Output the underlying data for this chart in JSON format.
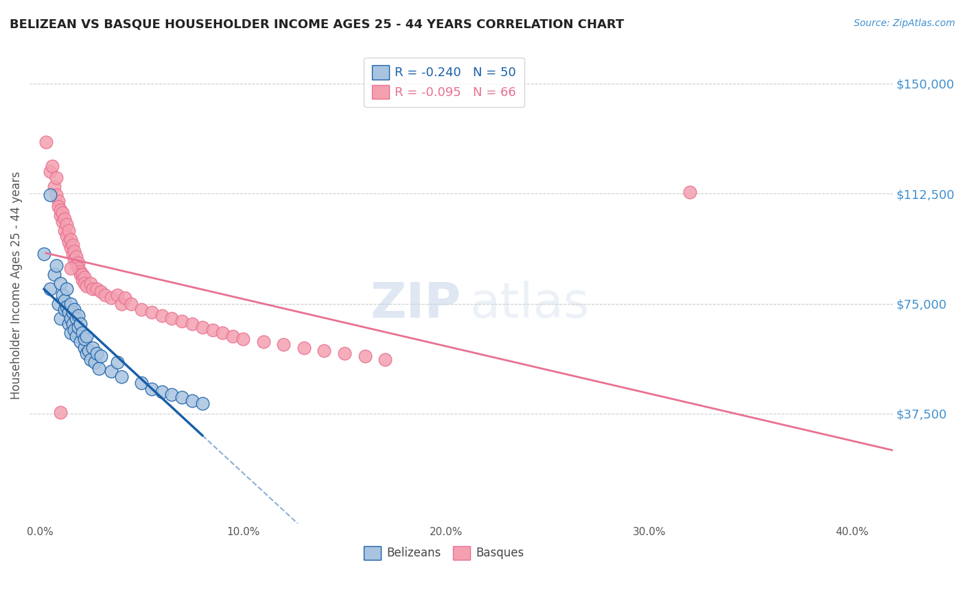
{
  "title": "BELIZEAN VS BASQUE HOUSEHOLDER INCOME AGES 25 - 44 YEARS CORRELATION CHART",
  "source": "Source: ZipAtlas.com",
  "ylabel": "Householder Income Ages 25 - 44 years",
  "xlabel_ticks": [
    "0.0%",
    "10.0%",
    "20.0%",
    "30.0%",
    "40.0%"
  ],
  "xlabel_vals": [
    0.0,
    0.1,
    0.2,
    0.3,
    0.4
  ],
  "ytick_labels": [
    "$37,500",
    "$75,000",
    "$112,500",
    "$150,000"
  ],
  "ytick_vals": [
    37500,
    75000,
    112500,
    150000
  ],
  "ylim": [
    0,
    162500
  ],
  "xlim": [
    -0.005,
    0.42
  ],
  "belizean_R": -0.24,
  "belizean_N": 50,
  "basque_R": -0.095,
  "basque_N": 66,
  "belizean_color": "#a8c4e0",
  "basque_color": "#f4a0b0",
  "belizean_line_color": "#1a5fa8",
  "basque_line_color": "#e87090",
  "grid_color": "#cccccc",
  "belizean_x": [
    0.002,
    0.005,
    0.005,
    0.007,
    0.008,
    0.009,
    0.01,
    0.01,
    0.011,
    0.012,
    0.012,
    0.013,
    0.013,
    0.014,
    0.014,
    0.015,
    0.015,
    0.015,
    0.016,
    0.016,
    0.017,
    0.017,
    0.018,
    0.018,
    0.019,
    0.019,
    0.02,
    0.02,
    0.021,
    0.022,
    0.022,
    0.023,
    0.023,
    0.024,
    0.025,
    0.026,
    0.027,
    0.028,
    0.029,
    0.03,
    0.035,
    0.038,
    0.04,
    0.05,
    0.055,
    0.06,
    0.065,
    0.07,
    0.075,
    0.08
  ],
  "belizean_y": [
    92000,
    112000,
    80000,
    85000,
    88000,
    75000,
    70000,
    82000,
    78000,
    73000,
    76000,
    80000,
    74000,
    72000,
    68000,
    75000,
    70000,
    65000,
    72000,
    68000,
    73000,
    66000,
    70000,
    64000,
    71000,
    67000,
    68000,
    62000,
    65000,
    60000,
    63000,
    58000,
    64000,
    59000,
    56000,
    60000,
    55000,
    58000,
    53000,
    57000,
    52000,
    55000,
    50000,
    48000,
    46000,
    45000,
    44000,
    43000,
    42000,
    41000
  ],
  "basque_x": [
    0.003,
    0.005,
    0.006,
    0.007,
    0.008,
    0.008,
    0.009,
    0.009,
    0.01,
    0.01,
    0.011,
    0.011,
    0.012,
    0.012,
    0.013,
    0.013,
    0.014,
    0.014,
    0.015,
    0.015,
    0.016,
    0.016,
    0.017,
    0.017,
    0.018,
    0.018,
    0.019,
    0.019,
    0.02,
    0.02,
    0.021,
    0.021,
    0.022,
    0.022,
    0.023,
    0.025,
    0.026,
    0.028,
    0.03,
    0.032,
    0.035,
    0.038,
    0.04,
    0.042,
    0.045,
    0.05,
    0.055,
    0.06,
    0.065,
    0.07,
    0.075,
    0.08,
    0.085,
    0.09,
    0.095,
    0.1,
    0.11,
    0.12,
    0.13,
    0.14,
    0.15,
    0.16,
    0.17,
    0.32,
    0.01,
    0.015
  ],
  "basque_y": [
    130000,
    120000,
    122000,
    115000,
    118000,
    112000,
    110000,
    108000,
    105000,
    107000,
    103000,
    106000,
    100000,
    104000,
    98000,
    102000,
    96000,
    100000,
    94000,
    97000,
    95000,
    92000,
    93000,
    90000,
    91000,
    88000,
    89000,
    87000,
    86000,
    85000,
    85000,
    83000,
    84000,
    82000,
    81000,
    82000,
    80000,
    80000,
    79000,
    78000,
    77000,
    78000,
    75000,
    77000,
    75000,
    73000,
    72000,
    71000,
    70000,
    69000,
    68000,
    67000,
    66000,
    65000,
    64000,
    63000,
    62000,
    61000,
    60000,
    59000,
    58000,
    57000,
    56000,
    113000,
    38000,
    87000
  ]
}
